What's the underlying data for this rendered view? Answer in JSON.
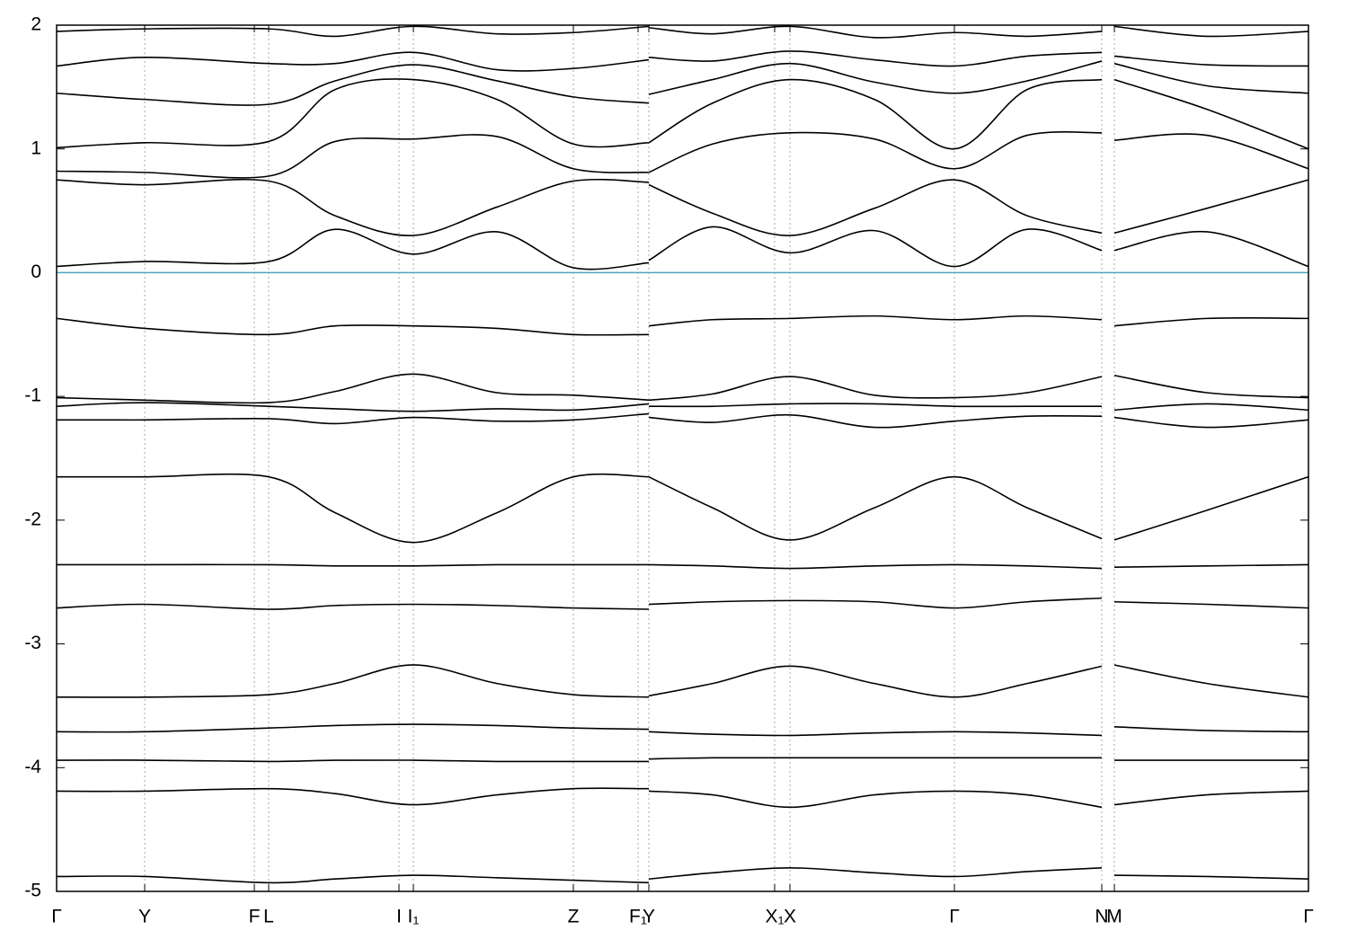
{
  "chart_data": {
    "type": "line",
    "xlim": [
      0,
      13.93
    ],
    "ylim": [
      -5,
      2
    ],
    "yticks": [
      -5,
      -4,
      -3,
      -2,
      -1,
      0,
      1,
      2
    ],
    "xticks": [
      {
        "value": 0,
        "label": "Γ"
      },
      {
        "value": 0.98,
        "label": "Y"
      },
      {
        "value": 2.2,
        "label": "F"
      },
      {
        "value": 2.36,
        "label": "L"
      },
      {
        "value": 3.81,
        "label": "I"
      },
      {
        "value": 3.97,
        "label": "I₁"
      },
      {
        "value": 5.75,
        "label": "Z"
      },
      {
        "value": 6.47,
        "label": "F₁"
      },
      {
        "value": 6.59,
        "label": "Y"
      },
      {
        "value": 7.99,
        "label": "X₁"
      },
      {
        "value": 8.16,
        "label": "X"
      },
      {
        "value": 9.99,
        "label": "Γ"
      },
      {
        "value": 11.63,
        "label": "N"
      },
      {
        "value": 11.77,
        "label": "M"
      },
      {
        "value": 13.93,
        "label": "Γ"
      }
    ],
    "xgrid": true,
    "hline": 0,
    "hline_color": "#4aa8c0",
    "x": [
      0,
      0.98,
      2.36,
      3.1,
      3.97,
      4.9,
      5.75,
      6.59,
      null,
      6.59,
      7.3,
      8.16,
      9.1,
      9.99,
      10.8,
      11.63,
      null,
      11.77,
      12.8,
      13.93
    ],
    "series": [
      {
        "color": "#000000",
        "values": [
          0.05,
          0.09,
          0.09,
          0.35,
          0.15,
          0.33,
          0.04,
          0.08,
          null,
          0.1,
          0.37,
          0.16,
          0.34,
          0.05,
          0.35,
          0.18,
          null,
          0.18,
          0.33,
          0.05
        ]
      },
      {
        "color": "#000000",
        "values": [
          0.75,
          0.71,
          0.74,
          0.46,
          0.3,
          0.53,
          0.74,
          0.73,
          null,
          0.71,
          0.48,
          0.3,
          0.52,
          0.75,
          0.46,
          0.32,
          null,
          0.32,
          0.52,
          0.75
        ]
      },
      {
        "color": "#000000",
        "values": [
          0.82,
          0.81,
          0.78,
          1.06,
          1.08,
          1.1,
          0.84,
          0.81,
          null,
          0.81,
          1.04,
          1.13,
          1.08,
          0.84,
          1.11,
          1.13,
          null,
          1.07,
          1.11,
          0.84
        ]
      },
      {
        "color": "#000000",
        "values": [
          1.01,
          1.05,
          1.06,
          1.48,
          1.56,
          1.4,
          1.04,
          1.05,
          null,
          1.05,
          1.37,
          1.56,
          1.4,
          1.0,
          1.48,
          1.56,
          null,
          1.56,
          1.32,
          1.0
        ]
      },
      {
        "color": "#000000",
        "values": [
          1.45,
          1.4,
          1.36,
          1.55,
          1.68,
          1.55,
          1.42,
          1.37,
          null,
          1.44,
          1.56,
          1.69,
          1.54,
          1.45,
          1.55,
          1.71,
          null,
          1.69,
          1.51,
          1.45
        ]
      },
      {
        "color": "#000000",
        "values": [
          1.67,
          1.74,
          1.69,
          1.69,
          1.78,
          1.64,
          1.65,
          1.72,
          null,
          1.74,
          1.71,
          1.79,
          1.72,
          1.67,
          1.75,
          1.78,
          null,
          1.75,
          1.68,
          1.67
        ]
      },
      {
        "color": "#000000",
        "values": [
          1.95,
          1.97,
          1.97,
          1.91,
          1.99,
          1.93,
          1.94,
          1.99,
          null,
          1.98,
          1.93,
          1.99,
          1.9,
          1.94,
          1.91,
          1.95,
          null,
          1.99,
          1.91,
          1.95
        ]
      },
      {
        "color": "#000000",
        "values": [
          -0.37,
          -0.45,
          -0.5,
          -0.43,
          -0.43,
          -0.45,
          -0.5,
          -0.5,
          null,
          -0.43,
          -0.38,
          -0.37,
          -0.35,
          -0.38,
          -0.35,
          -0.38,
          null,
          -0.43,
          -0.37,
          -0.37
        ]
      },
      {
        "color": "#000000",
        "values": [
          -1.01,
          -1.03,
          -1.05,
          -0.96,
          -0.82,
          -0.97,
          -0.99,
          -1.03,
          null,
          -1.03,
          -0.98,
          -0.84,
          -0.99,
          -1.01,
          -0.97,
          -0.84,
          null,
          -0.83,
          -0.97,
          -1.01
        ]
      },
      {
        "color": "#000000",
        "values": [
          -1.08,
          -1.05,
          -1.08,
          -1.1,
          -1.12,
          -1.1,
          -1.11,
          -1.06,
          null,
          -1.08,
          -1.08,
          -1.06,
          -1.06,
          -1.08,
          -1.08,
          -1.08,
          null,
          -1.11,
          -1.06,
          -1.11
        ]
      },
      {
        "color": "#000000",
        "values": [
          -1.19,
          -1.19,
          -1.18,
          -1.22,
          -1.17,
          -1.2,
          -1.19,
          -1.14,
          null,
          -1.17,
          -1.21,
          -1.15,
          -1.25,
          -1.2,
          -1.16,
          -1.16,
          null,
          -1.17,
          -1.25,
          -1.19
        ]
      },
      {
        "color": "#000000",
        "values": [
          -1.65,
          -1.65,
          -1.65,
          -1.94,
          -2.18,
          -1.94,
          -1.65,
          -1.65,
          null,
          -1.65,
          -1.9,
          -2.16,
          -1.9,
          -1.65,
          -1.9,
          -2.15,
          null,
          -2.16,
          -1.92,
          -1.65
        ]
      },
      {
        "color": "#000000",
        "values": [
          -2.36,
          -2.36,
          -2.36,
          -2.37,
          -2.37,
          -2.36,
          -2.36,
          -2.36,
          null,
          -2.36,
          -2.37,
          -2.39,
          -2.37,
          -2.36,
          -2.37,
          -2.39,
          null,
          -2.38,
          -2.37,
          -2.36
        ]
      },
      {
        "color": "#000000",
        "values": [
          -2.71,
          -2.68,
          -2.72,
          -2.69,
          -2.68,
          -2.69,
          -2.71,
          -2.72,
          null,
          -2.68,
          -2.66,
          -2.65,
          -2.66,
          -2.71,
          -2.66,
          -2.63,
          null,
          -2.66,
          -2.68,
          -2.71
        ]
      },
      {
        "color": "#000000",
        "values": [
          -3.43,
          -3.43,
          -3.41,
          -3.32,
          -3.17,
          -3.32,
          -3.41,
          -3.43,
          null,
          -3.42,
          -3.32,
          -3.18,
          -3.32,
          -3.43,
          -3.32,
          -3.18,
          null,
          -3.17,
          -3.32,
          -3.43
        ]
      },
      {
        "color": "#000000",
        "values": [
          -3.71,
          -3.71,
          -3.68,
          -3.66,
          -3.65,
          -3.66,
          -3.68,
          -3.69,
          null,
          -3.71,
          -3.73,
          -3.74,
          -3.72,
          -3.71,
          -3.72,
          -3.74,
          null,
          -3.67,
          -3.7,
          -3.71
        ]
      },
      {
        "color": "#000000",
        "values": [
          -3.94,
          -3.94,
          -3.95,
          -3.94,
          -3.94,
          -3.95,
          -3.95,
          -3.95,
          null,
          -3.93,
          -3.92,
          -3.92,
          -3.92,
          -3.92,
          -3.92,
          -3.92,
          null,
          -3.94,
          -3.94,
          -3.94
        ]
      },
      {
        "color": "#000000",
        "values": [
          -4.19,
          -4.19,
          -4.17,
          -4.21,
          -4.3,
          -4.22,
          -4.17,
          -4.17,
          null,
          -4.19,
          -4.22,
          -4.32,
          -4.22,
          -4.19,
          -4.22,
          -4.32,
          null,
          -4.3,
          -4.22,
          -4.19
        ]
      },
      {
        "color": "#000000",
        "values": [
          -4.88,
          -4.88,
          -4.93,
          -4.9,
          -4.87,
          -4.89,
          -4.91,
          -4.93,
          null,
          -4.9,
          -4.85,
          -4.81,
          -4.85,
          -4.88,
          -4.84,
          -4.81,
          null,
          -4.87,
          -4.88,
          -4.9
        ]
      }
    ]
  }
}
